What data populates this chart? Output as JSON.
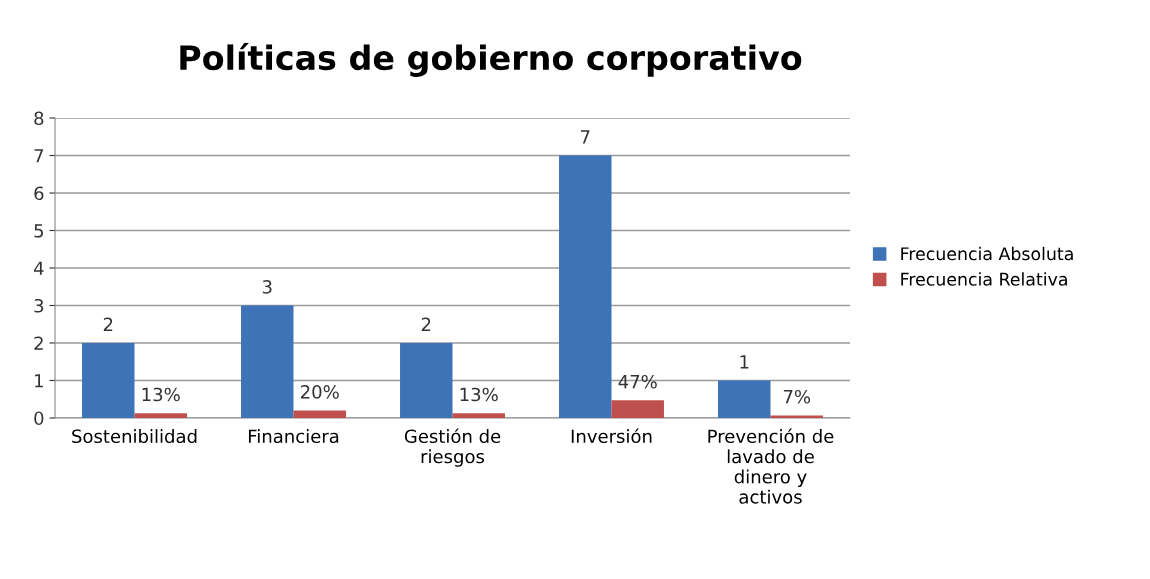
{
  "chart_data": {
    "type": "bar",
    "title": "Políticas de gobierno corporativo",
    "categories": [
      "Sostenibilidad",
      "Financiera",
      "Gestión de\nriesgos",
      "Inversión",
      "Prevención de\nlavado de\ndinero y\nactivos"
    ],
    "series": [
      {
        "name": "Frecuencia Absoluta",
        "color": "#3f73b8",
        "values": [
          2,
          3,
          2,
          7,
          1
        ],
        "value_labels": [
          "2",
          "3",
          "2",
          "7",
          "1"
        ]
      },
      {
        "name": "Frecuencia Relativa",
        "color": "#c0504d",
        "values": [
          0.13,
          0.2,
          0.13,
          0.47,
          0.07
        ],
        "value_labels": [
          "13%",
          "20%",
          "13%",
          "47%",
          "7%"
        ]
      }
    ],
    "ylim": [
      0,
      8
    ],
    "yticks": [
      0,
      1,
      2,
      3,
      4,
      5,
      6,
      7,
      8
    ],
    "grid": "y",
    "legend": "right"
  }
}
